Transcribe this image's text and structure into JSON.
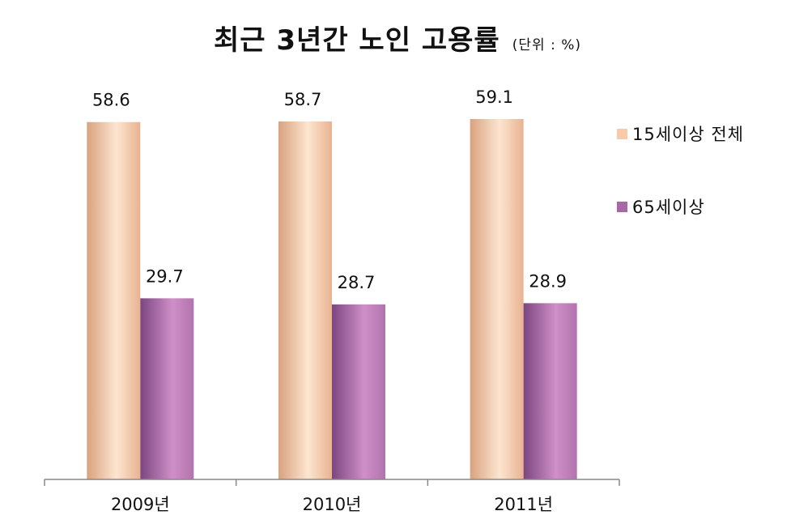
{
  "title": "최근 3년간 노인 고용률",
  "unit": "(단위 : %)",
  "colors": {
    "series0": "#f7cba9",
    "series1": "#a868a6",
    "axis": "#888888"
  },
  "chart_data": {
    "type": "bar",
    "title": "최근 3년간 노인 고용률",
    "xlabel": "",
    "ylabel": "",
    "ylim": [
      0,
      65
    ],
    "grid": false,
    "legend": "right",
    "categories": [
      "2009년",
      "2010년",
      "2011년"
    ],
    "series": [
      {
        "name": "15세이상 전체",
        "values": [
          58.6,
          58.7,
          59.1
        ],
        "labels": [
          "58.6",
          "58.7",
          "59.1"
        ]
      },
      {
        "name": "65세이상",
        "values": [
          29.7,
          28.7,
          28.9
        ],
        "labels": [
          "29.7",
          "28.7",
          "28.9"
        ]
      }
    ]
  }
}
